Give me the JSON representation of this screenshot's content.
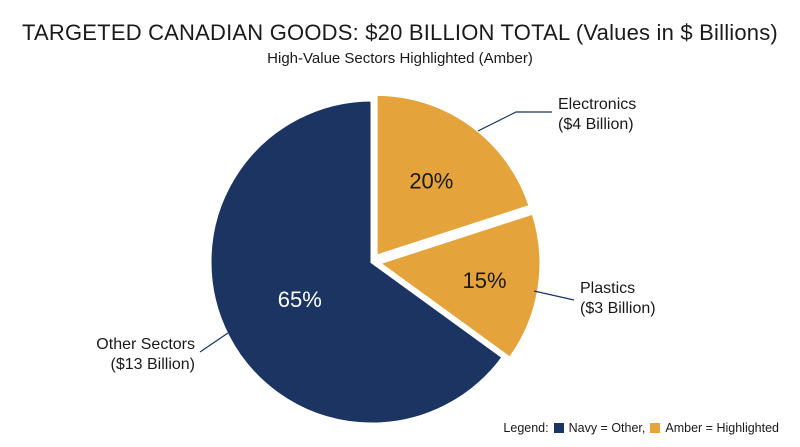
{
  "title": "TARGETED CANADIAN GOODS: $20 BILLION TOTAL (Values in $ Billions)",
  "subtitle": "High-Value Sectors Highlighted (Amber)",
  "colors": {
    "navy": "#1b3461",
    "amber": "#e5a33c",
    "text": "#1a1a1a"
  },
  "chart_data": {
    "type": "pie",
    "title": "TARGETED CANADIAN GOODS: $20 BILLION TOTAL (Values in $ Billions)",
    "subtitle": "High-Value Sectors Highlighted (Amber)",
    "total": 20,
    "slices": [
      {
        "name": "Electronics",
        "value": 4,
        "percent_label": "20%",
        "callout": [
          "Electronics",
          "($4 Billion)"
        ],
        "color": "#e5a33c",
        "exploded": true
      },
      {
        "name": "Plastics",
        "value": 3,
        "percent_label": "15%",
        "callout": [
          "Plastics",
          "($3 Billion)"
        ],
        "color": "#e5a33c",
        "exploded": true
      },
      {
        "name": "Other Sectors",
        "value": 13,
        "percent_label": "65%",
        "callout": [
          "Other Sectors",
          "($13 Billion)"
        ],
        "color": "#1b3461",
        "exploded": false
      }
    ]
  },
  "legend": {
    "prefix": "Legend:",
    "items": [
      {
        "label": "Navy = Other,",
        "color": "#1b3461"
      },
      {
        "label": "Amber = Highlighted",
        "color": "#e5a33c"
      }
    ]
  }
}
